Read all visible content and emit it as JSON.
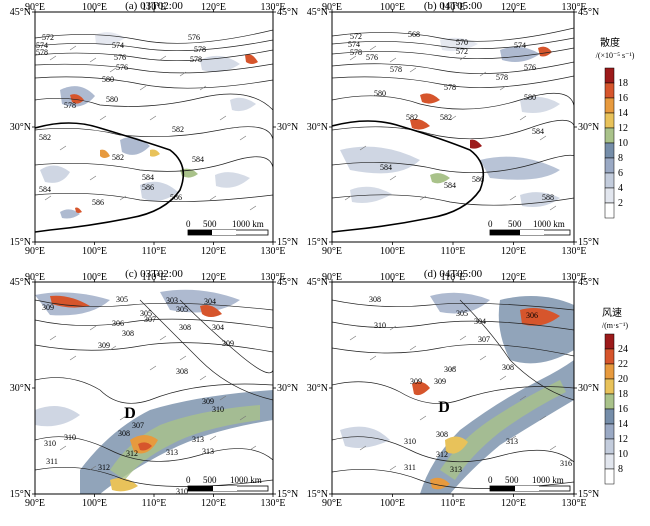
{
  "panels": [
    {
      "id": "a",
      "title": "(a) 03T02:00",
      "contour_labels": [
        "572",
        "574",
        "578",
        "574",
        "576",
        "576",
        "578",
        "576",
        "578",
        "580",
        "580",
        "582",
        "582",
        "582",
        "584",
        "584",
        "584",
        "586",
        "586",
        "586",
        "578"
      ],
      "letters": []
    },
    {
      "id": "b",
      "title": "(b) 04T05:00",
      "contour_labels": [
        "572",
        "574",
        "578",
        "568",
        "570",
        "572",
        "576",
        "578",
        "574",
        "576",
        "578",
        "578",
        "580",
        "580",
        "582",
        "582",
        "584",
        "584",
        "584",
        "588",
        "586"
      ],
      "letters": []
    },
    {
      "id": "c",
      "title": "(c) 03T02:00",
      "contour_labels": [
        "305",
        "305",
        "309",
        "304",
        "307",
        "303",
        "306",
        "308",
        "308",
        "304",
        "305",
        "309",
        "308",
        "309",
        "309",
        "310",
        "307",
        "308",
        "312",
        "313",
        "310",
        "310",
        "311",
        "312",
        "313",
        "313",
        "310"
      ],
      "letters": [
        "D"
      ]
    },
    {
      "id": "d",
      "title": "(d) 04T05:00",
      "contour_labels": [
        "308",
        "305",
        "304",
        "310",
        "306",
        "307",
        "308",
        "308",
        "309",
        "309",
        "308",
        "313",
        "310",
        "311",
        "312",
        "313",
        "316"
      ],
      "letters": [
        "D"
      ]
    }
  ],
  "axes": {
    "x_ticks": [
      "90°E",
      "100°E",
      "110°E",
      "120°E",
      "130°E"
    ],
    "y_ticks_left": [
      "45°N",
      "30°N",
      "15°N"
    ],
    "y_ticks_right": [
      "45°N",
      "30°N",
      "15°N"
    ]
  },
  "scale_bar": {
    "labels": [
      "0",
      "500",
      "1000 km"
    ]
  },
  "legends": [
    {
      "title": "散度",
      "units": "/(×10⁻⁵ s⁻¹)",
      "ticks": [
        "18",
        "16",
        "14",
        "12",
        "10",
        "8",
        "6",
        "4",
        "2"
      ],
      "colors": [
        "#ffffff",
        "#e2e6ee",
        "#c3ccdc",
        "#9aa9c4",
        "#758da9",
        "#a9c28a",
        "#e8c25a",
        "#e79a3e",
        "#d6552c",
        "#9c1a1a"
      ]
    },
    {
      "title": "风速",
      "units": "/(m·s⁻¹)",
      "ticks": [
        "24",
        "22",
        "20",
        "18",
        "16",
        "14",
        "12",
        "10",
        "8"
      ],
      "colors": [
        "#ffffff",
        "#e2e6ee",
        "#c3ccdc",
        "#9aa9c4",
        "#758da9",
        "#a9c28a",
        "#e8c25a",
        "#e79a3e",
        "#d6552c",
        "#9c1a1a"
      ]
    }
  ]
}
